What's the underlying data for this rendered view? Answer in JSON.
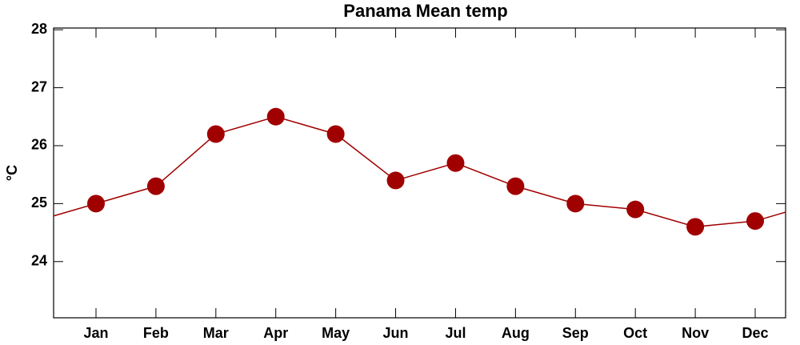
{
  "chart_data": {
    "type": "line",
    "title": "Panama Mean temp",
    "y_label": "°C",
    "categories": [
      "Jan",
      "Feb",
      "Mar",
      "Apr",
      "May",
      "Jun",
      "Jul",
      "Aug",
      "Sep",
      "Oct",
      "Nov",
      "Dec"
    ],
    "series": [
      {
        "name": "Mean temp",
        "color": "#a00000",
        "values": [
          25.0,
          25.3,
          26.2,
          26.5,
          26.2,
          25.4,
          25.7,
          25.3,
          25.0,
          24.9,
          24.6,
          24.7
        ]
      }
    ],
    "ylim": [
      23.03,
      28.03
    ],
    "yticks": [
      24,
      25,
      26,
      27,
      28
    ]
  }
}
